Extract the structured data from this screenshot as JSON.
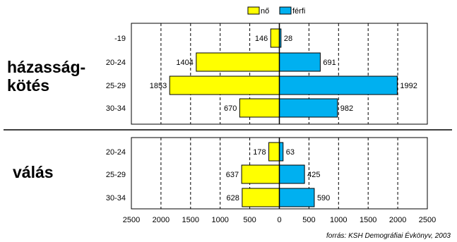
{
  "chart_data": {
    "type": "bar",
    "orientation": "horizontal-butterfly",
    "legend": [
      "nő",
      "férfi"
    ],
    "legend_placement": "top-center",
    "colors": {
      "no": "#ffff00",
      "ferfi": "#00b0f0"
    },
    "xlim": [
      -2500,
      2500
    ],
    "x_ticks": [
      "2500",
      "2000",
      "1500",
      "1000",
      "500",
      "0",
      "500",
      "1000",
      "1500",
      "2000",
      "2500"
    ],
    "grid": "vertical-dashed",
    "groups": [
      {
        "label": "házasság-\nkötés",
        "label_lines": [
          "házasság-",
          "kötés"
        ],
        "categories": [
          "-19",
          "20-24",
          "25-29",
          "30-34"
        ],
        "no": [
          146,
          1404,
          1853,
          670
        ],
        "ferfi": [
          28,
          691,
          1992,
          982
        ]
      },
      {
        "label": "válás",
        "label_lines": [
          "válás"
        ],
        "categories": [
          "20-24",
          "25-29",
          "30-34"
        ],
        "no": [
          178,
          637,
          628
        ],
        "ferfi": [
          63,
          425,
          590
        ]
      }
    ],
    "source": "forrás: KSH Demográfiai Évkönyv, 2003"
  }
}
